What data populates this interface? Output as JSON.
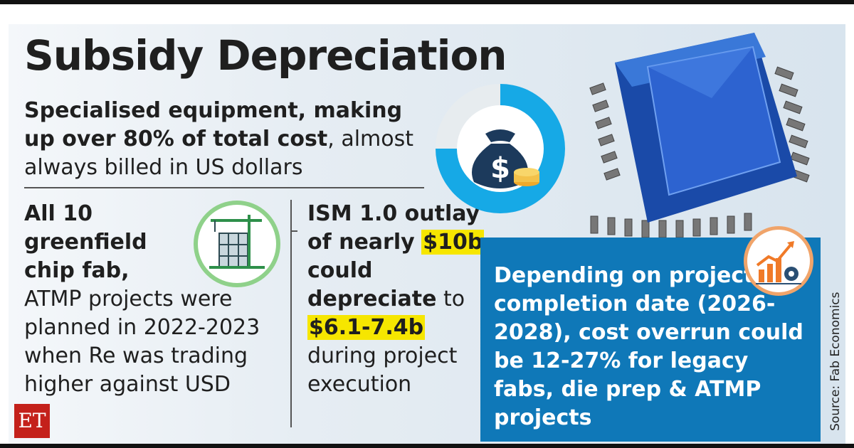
{
  "title": "Subsidy Depreciation",
  "subtitle": {
    "bold": "Specialised equipment, making up over 80% of total cost",
    "rest": ", almost always billed in US dollars"
  },
  "col1": {
    "bold": "All 10 greenfield chip fab,",
    "rest": "ATMP projects were planned in 2022-2023 when Re was trading higher against USD"
  },
  "col2": {
    "part1": "ISM 1.0 outlay of nearly",
    "highlight1": "$10b",
    "part2": "could depreciate",
    "part3": "to",
    "highlight2": "$6.1-7.4b",
    "part4": "during project execution"
  },
  "blue_box": "Depending on project completion date (2026-2028), cost overrun could be 12-27% for legacy fabs, die prep & ATMP projects",
  "source": "Source: Fab Economics",
  "logo": "ET",
  "icons": [
    "money-bag-icon",
    "construction-crane-icon",
    "chip-icon",
    "growth-chart-gear-icon"
  ],
  "colors": {
    "accent_blue": "#0f78b8",
    "highlight_yellow": "#f6e600",
    "donut_blue": "#16a9e6"
  }
}
